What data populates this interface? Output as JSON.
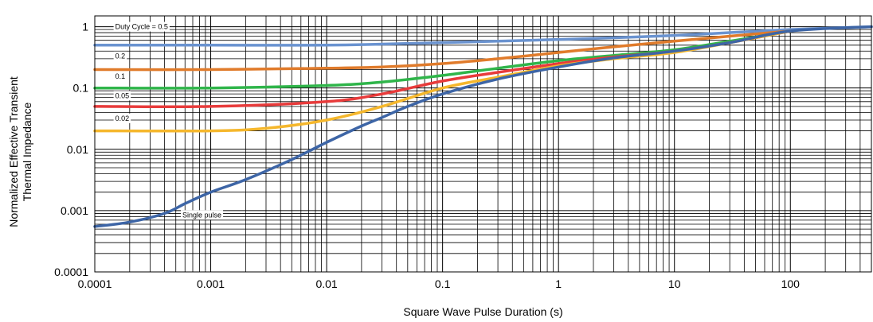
{
  "chart_data": {
    "type": "line",
    "x_scale": "log",
    "y_scale": "log",
    "xlabel": "Square Wave Pulse Duration (s)",
    "ylabel_lines": [
      "Normalized Effective Transient",
      "Thermal Impedance"
    ],
    "xlim": [
      0.0001,
      500
    ],
    "ylim": [
      0.0001,
      1.5
    ],
    "x_ticks": [
      {
        "value": 0.0001,
        "label": "0.0001"
      },
      {
        "value": 0.001,
        "label": "0.001"
      },
      {
        "value": 0.01,
        "label": "0.01"
      },
      {
        "value": 0.1,
        "label": "0.1"
      },
      {
        "value": 1,
        "label": "1"
      },
      {
        "value": 10,
        "label": "10"
      },
      {
        "value": 100,
        "label": "100"
      }
    ],
    "y_ticks": [
      {
        "value": 1,
        "label": "1"
      },
      {
        "value": 0.1,
        "label": "0.1"
      },
      {
        "value": 0.01,
        "label": "0.01"
      },
      {
        "value": 0.001,
        "label": "0.001"
      },
      {
        "value": 0.0001,
        "label": "0.0001"
      }
    ],
    "grid": true,
    "series": [
      {
        "name": "Duty Cycle = 0.5",
        "color": "#6a93d0",
        "label_x": 0.00015,
        "label_y": 1.0,
        "x": [
          0.0001,
          0.001,
          0.01,
          0.03,
          0.1,
          0.3,
          1,
          3,
          10,
          30,
          100,
          500
        ],
        "y": [
          0.5,
          0.5,
          0.5,
          0.52,
          0.55,
          0.58,
          0.62,
          0.66,
          0.72,
          0.8,
          0.9,
          1.0
        ]
      },
      {
        "name": "0.2",
        "color": "#e07b2b",
        "label_x": 0.00015,
        "label_y": 0.33,
        "x": [
          0.0001,
          0.001,
          0.01,
          0.03,
          0.1,
          0.3,
          1,
          3,
          10,
          30,
          100
        ],
        "y": [
          0.2,
          0.2,
          0.21,
          0.22,
          0.25,
          0.3,
          0.38,
          0.47,
          0.58,
          0.7,
          0.85
        ]
      },
      {
        "name": "0.1",
        "color": "#2fb54a",
        "label_x": 0.00015,
        "label_y": 0.155,
        "x": [
          0.0001,
          0.001,
          0.01,
          0.03,
          0.1,
          0.3,
          1,
          3,
          10,
          30,
          100
        ],
        "y": [
          0.1,
          0.1,
          0.11,
          0.125,
          0.16,
          0.21,
          0.28,
          0.34,
          0.42,
          0.58,
          0.85
        ]
      },
      {
        "name": "0.05",
        "color": "#e83b3b",
        "label_x": 0.00015,
        "label_y": 0.075,
        "x": [
          0.0001,
          0.001,
          0.01,
          0.03,
          0.1,
          0.3,
          1,
          3,
          10,
          30,
          100
        ],
        "y": [
          0.05,
          0.05,
          0.06,
          0.08,
          0.13,
          0.18,
          0.25,
          0.32,
          0.4,
          0.55,
          0.85
        ]
      },
      {
        "name": "0.02",
        "color": "#f5b72c",
        "label_x": 0.00015,
        "label_y": 0.032,
        "x": [
          0.0001,
          0.001,
          0.003,
          0.01,
          0.03,
          0.1,
          0.3,
          1,
          3,
          10,
          30,
          100
        ],
        "y": [
          0.02,
          0.02,
          0.022,
          0.03,
          0.05,
          0.1,
          0.15,
          0.23,
          0.3,
          0.38,
          0.55,
          0.85
        ]
      },
      {
        "name": "Single pulse",
        "color": "#3d65a6",
        "label_x": 0.00057,
        "label_y": 0.00085,
        "x": [
          0.0001,
          0.0002,
          0.0004,
          0.0006,
          0.001,
          0.002,
          0.005,
          0.01,
          0.02,
          0.03,
          0.05,
          0.1,
          0.3,
          1,
          3,
          10,
          30,
          100,
          500
        ],
        "y": [
          0.00055,
          0.00065,
          0.0009,
          0.0013,
          0.002,
          0.0032,
          0.0068,
          0.013,
          0.024,
          0.033,
          0.05,
          0.08,
          0.14,
          0.22,
          0.31,
          0.4,
          0.55,
          0.85,
          1.0
        ]
      }
    ]
  }
}
